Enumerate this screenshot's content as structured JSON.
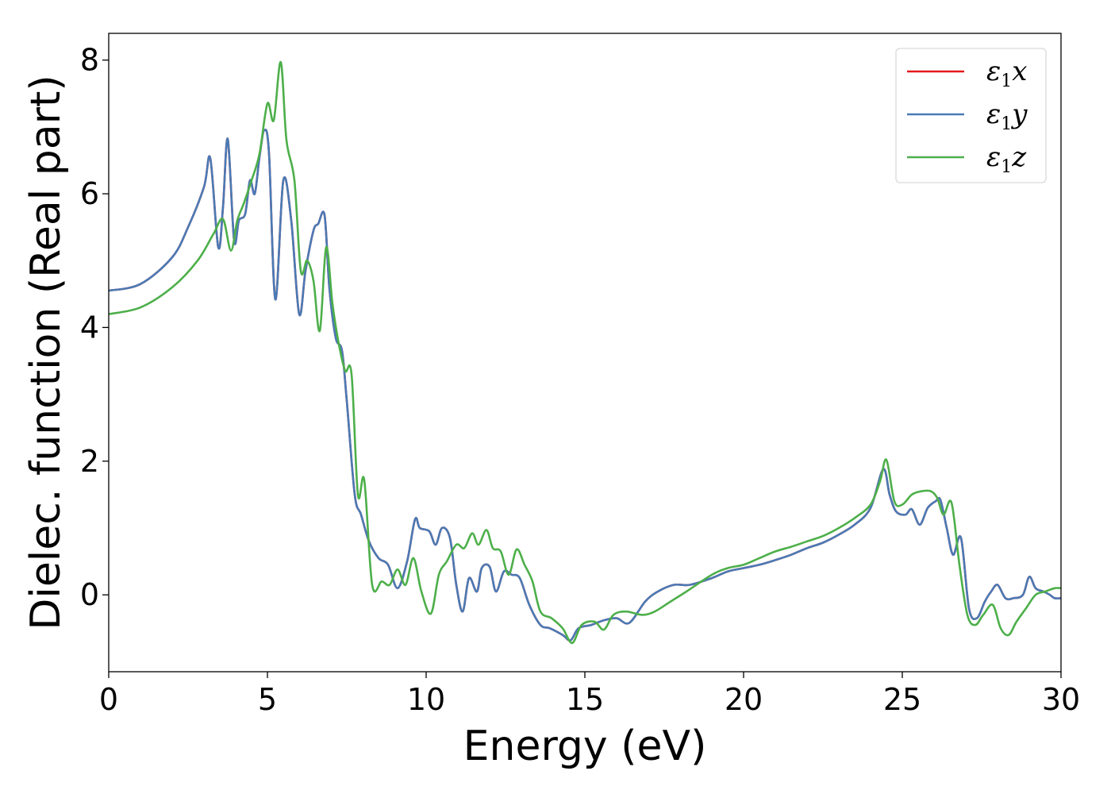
{
  "chart_data": {
    "type": "line",
    "xlabel": "Energy (eV)",
    "ylabel": "Dielec. function (Real part)",
    "xlim": [
      0,
      30
    ],
    "ylim": [
      -1.15,
      8.4
    ],
    "xticks": [
      0,
      5,
      10,
      15,
      20,
      25,
      30
    ],
    "yticks": [
      0,
      2,
      4,
      6,
      8
    ],
    "grid": false,
    "legend_position": "top-right",
    "series": [
      {
        "name": "ε1x",
        "legend_symbol": "ε",
        "legend_subscript": "1",
        "legend_suffix": "x",
        "color": "#e41a1c",
        "x": [
          0,
          1,
          2,
          2.5,
          3.0,
          3.2,
          3.45,
          3.6,
          3.75,
          3.95,
          4.1,
          4.3,
          4.45,
          4.6,
          4.75,
          4.9,
          5.05,
          5.25,
          5.5,
          5.75,
          6.0,
          6.2,
          6.45,
          6.6,
          6.8,
          6.95,
          7.15,
          7.35,
          7.5,
          7.75,
          7.95,
          8.2,
          8.5,
          8.8,
          9.1,
          9.4,
          9.65,
          9.8,
          10.1,
          10.3,
          10.5,
          10.75,
          10.95,
          11.15,
          11.35,
          11.6,
          11.75,
          12.0,
          12.2,
          12.45,
          12.7,
          12.95,
          13.25,
          13.6,
          13.9,
          14.3,
          14.55,
          14.8,
          15.2,
          15.6,
          16.0,
          16.4,
          16.9,
          17.3,
          17.8,
          18.3,
          19.0,
          19.5,
          20.0,
          20.5,
          21.0,
          21.5,
          22.0,
          22.5,
          23.0,
          23.5,
          24.0,
          24.4,
          24.6,
          24.8,
          25.1,
          25.3,
          25.55,
          25.8,
          26.05,
          26.2,
          26.4,
          26.6,
          26.85,
          27.1,
          27.35,
          27.6,
          27.8,
          28.0,
          28.25,
          28.5,
          28.8,
          29.0,
          29.2,
          29.45,
          29.65,
          29.8,
          30.0
        ],
        "y": [
          4.55,
          4.65,
          5.05,
          5.5,
          6.1,
          6.53,
          5.2,
          5.8,
          6.82,
          5.3,
          5.6,
          5.7,
          6.2,
          6.0,
          6.55,
          6.95,
          6.6,
          4.42,
          6.2,
          5.6,
          4.2,
          4.85,
          5.45,
          5.55,
          5.68,
          4.6,
          3.85,
          3.65,
          2.9,
          1.5,
          1.2,
          0.8,
          0.55,
          0.45,
          0.1,
          0.5,
          1.13,
          1.0,
          0.95,
          0.75,
          1.0,
          0.85,
          0.15,
          -0.25,
          0.25,
          0.05,
          0.4,
          0.42,
          0.05,
          0.35,
          0.3,
          0.25,
          -0.15,
          -0.45,
          -0.5,
          -0.6,
          -0.68,
          -0.5,
          -0.45,
          -0.38,
          -0.35,
          -0.42,
          -0.1,
          0.05,
          0.15,
          0.15,
          0.25,
          0.35,
          0.4,
          0.45,
          0.52,
          0.6,
          0.7,
          0.78,
          0.9,
          1.05,
          1.3,
          1.88,
          1.5,
          1.25,
          1.2,
          1.28,
          1.05,
          1.3,
          1.4,
          1.42,
          1.0,
          0.6,
          0.85,
          -0.2,
          -0.35,
          -0.1,
          0.05,
          0.15,
          -0.05,
          -0.05,
          0.0,
          0.27,
          0.1,
          0.05,
          0.0,
          -0.05,
          -0.05
        ]
      },
      {
        "name": "ε1y",
        "legend_symbol": "ε",
        "legend_subscript": "1",
        "legend_suffix": "y",
        "color": "#4a7ab5",
        "x": [
          0,
          1,
          2,
          2.5,
          3.0,
          3.2,
          3.45,
          3.6,
          3.75,
          3.95,
          4.1,
          4.3,
          4.45,
          4.6,
          4.75,
          4.9,
          5.05,
          5.25,
          5.5,
          5.75,
          6.0,
          6.2,
          6.45,
          6.6,
          6.8,
          6.95,
          7.15,
          7.35,
          7.5,
          7.75,
          7.95,
          8.2,
          8.5,
          8.8,
          9.1,
          9.4,
          9.65,
          9.8,
          10.1,
          10.3,
          10.5,
          10.75,
          10.95,
          11.15,
          11.35,
          11.6,
          11.75,
          12.0,
          12.2,
          12.45,
          12.7,
          12.95,
          13.25,
          13.6,
          13.9,
          14.3,
          14.55,
          14.8,
          15.2,
          15.6,
          16.0,
          16.4,
          16.9,
          17.3,
          17.8,
          18.3,
          19.0,
          19.5,
          20.0,
          20.5,
          21.0,
          21.5,
          22.0,
          22.5,
          23.0,
          23.5,
          24.0,
          24.4,
          24.6,
          24.8,
          25.1,
          25.3,
          25.55,
          25.8,
          26.05,
          26.2,
          26.4,
          26.6,
          26.85,
          27.1,
          27.35,
          27.6,
          27.8,
          28.0,
          28.25,
          28.5,
          28.8,
          29.0,
          29.2,
          29.45,
          29.65,
          29.8,
          30.0
        ],
        "y": [
          4.55,
          4.65,
          5.05,
          5.5,
          6.1,
          6.53,
          5.2,
          5.8,
          6.82,
          5.3,
          5.6,
          5.7,
          6.2,
          6.0,
          6.55,
          6.95,
          6.6,
          4.42,
          6.2,
          5.6,
          4.2,
          4.85,
          5.45,
          5.55,
          5.68,
          4.6,
          3.85,
          3.65,
          2.9,
          1.5,
          1.2,
          0.8,
          0.55,
          0.45,
          0.1,
          0.5,
          1.13,
          1.0,
          0.95,
          0.75,
          1.0,
          0.85,
          0.15,
          -0.25,
          0.25,
          0.05,
          0.4,
          0.42,
          0.05,
          0.35,
          0.3,
          0.25,
          -0.15,
          -0.45,
          -0.5,
          -0.6,
          -0.68,
          -0.5,
          -0.45,
          -0.38,
          -0.35,
          -0.42,
          -0.1,
          0.05,
          0.15,
          0.15,
          0.25,
          0.35,
          0.4,
          0.45,
          0.52,
          0.6,
          0.7,
          0.78,
          0.9,
          1.05,
          1.3,
          1.88,
          1.5,
          1.25,
          1.2,
          1.28,
          1.05,
          1.3,
          1.4,
          1.42,
          1.0,
          0.6,
          0.85,
          -0.2,
          -0.35,
          -0.1,
          0.05,
          0.15,
          -0.05,
          -0.05,
          0.0,
          0.27,
          0.1,
          0.05,
          0.0,
          -0.05,
          -0.05
        ]
      },
      {
        "name": "ε1z",
        "legend_symbol": "ε",
        "legend_subscript": "1",
        "legend_suffix": "z",
        "color": "#4daf4a",
        "x": [
          0,
          1,
          2,
          2.8,
          3.3,
          3.6,
          3.85,
          4.05,
          4.25,
          4.5,
          4.75,
          5.0,
          5.2,
          5.42,
          5.6,
          5.85,
          6.05,
          6.25,
          6.45,
          6.65,
          6.85,
          7.05,
          7.25,
          7.45,
          7.65,
          7.85,
          8.05,
          8.3,
          8.6,
          8.85,
          9.1,
          9.35,
          9.6,
          9.85,
          10.15,
          10.4,
          10.65,
          10.95,
          11.2,
          11.45,
          11.65,
          11.9,
          12.1,
          12.35,
          12.6,
          12.85,
          13.1,
          13.35,
          13.6,
          13.95,
          14.3,
          14.6,
          14.9,
          15.3,
          15.6,
          15.9,
          16.3,
          16.8,
          17.2,
          17.7,
          18.2,
          19.0,
          19.5,
          20.0,
          20.5,
          21.0,
          21.5,
          22.0,
          22.5,
          23.0,
          23.5,
          24.0,
          24.3,
          24.5,
          24.75,
          25.0,
          25.3,
          25.6,
          25.9,
          26.1,
          26.3,
          26.55,
          26.8,
          27.05,
          27.3,
          27.55,
          27.85,
          28.1,
          28.35,
          28.6,
          28.9,
          29.2,
          29.5,
          29.8,
          30.0
        ],
        "y": [
          4.2,
          4.3,
          4.6,
          5.0,
          5.4,
          5.62,
          5.15,
          5.6,
          5.85,
          6.2,
          6.6,
          7.35,
          7.1,
          7.97,
          6.8,
          6.2,
          4.85,
          5.0,
          4.7,
          3.95,
          5.2,
          4.35,
          3.75,
          3.35,
          3.3,
          1.5,
          1.72,
          0.15,
          0.2,
          0.15,
          0.38,
          0.15,
          0.55,
          0.05,
          -0.28,
          0.3,
          0.5,
          0.75,
          0.7,
          0.92,
          0.75,
          0.97,
          0.7,
          0.65,
          0.3,
          0.68,
          0.45,
          0.2,
          -0.25,
          -0.35,
          -0.5,
          -0.72,
          -0.45,
          -0.4,
          -0.52,
          -0.3,
          -0.25,
          -0.3,
          -0.25,
          -0.1,
          0.05,
          0.3,
          0.4,
          0.45,
          0.55,
          0.65,
          0.72,
          0.8,
          0.88,
          1.0,
          1.15,
          1.35,
          1.7,
          2.02,
          1.4,
          1.35,
          1.5,
          1.55,
          1.55,
          1.45,
          1.2,
          1.38,
          0.45,
          -0.3,
          -0.45,
          -0.3,
          -0.15,
          -0.5,
          -0.6,
          -0.4,
          -0.2,
          0.0,
          0.05,
          0.1,
          0.1
        ]
      }
    ]
  }
}
